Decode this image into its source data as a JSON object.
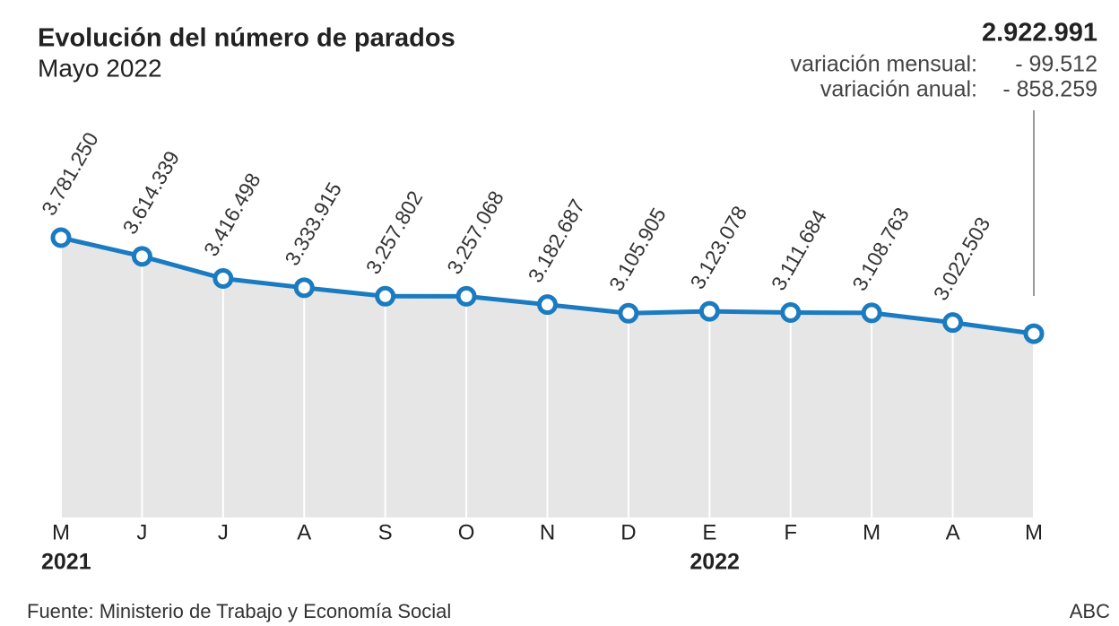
{
  "chart_data": {
    "type": "line",
    "title": "Evolución del número de parados",
    "subtitle": "Mayo 2022",
    "categories": [
      "M",
      "J",
      "J",
      "A",
      "S",
      "O",
      "N",
      "D",
      "E",
      "F",
      "M",
      "A",
      "M"
    ],
    "year_labels": [
      "2021",
      null,
      null,
      null,
      null,
      null,
      null,
      null,
      "2022",
      null,
      null,
      null,
      null
    ],
    "values": [
      3781250,
      3614339,
      3416498,
      3333915,
      3257802,
      3257068,
      3182687,
      3105905,
      3123078,
      3111684,
      3108763,
      3022503,
      2922991
    ],
    "value_labels": [
      "3.781.250",
      "3.614.339",
      "3.416.498",
      "3.333.915",
      "3.257.802",
      "3.257.068",
      "3.182.687",
      "3.105.905",
      "3.123.078",
      "3.111.684",
      "3.108.763",
      "3.022.503",
      "2.922.991"
    ],
    "color": "#1b7bc0",
    "area_color": "#e6e6e6",
    "ylim": [
      1280000,
      5000000
    ],
    "annotations": {
      "monthly_label": "variación mensual:",
      "monthly_value": "- 99.512",
      "annual_label": "variación anual:",
      "annual_value": "- 858.259"
    },
    "source": "Fuente: Ministerio de Trabajo y Economía Social",
    "credit": "ABC"
  }
}
